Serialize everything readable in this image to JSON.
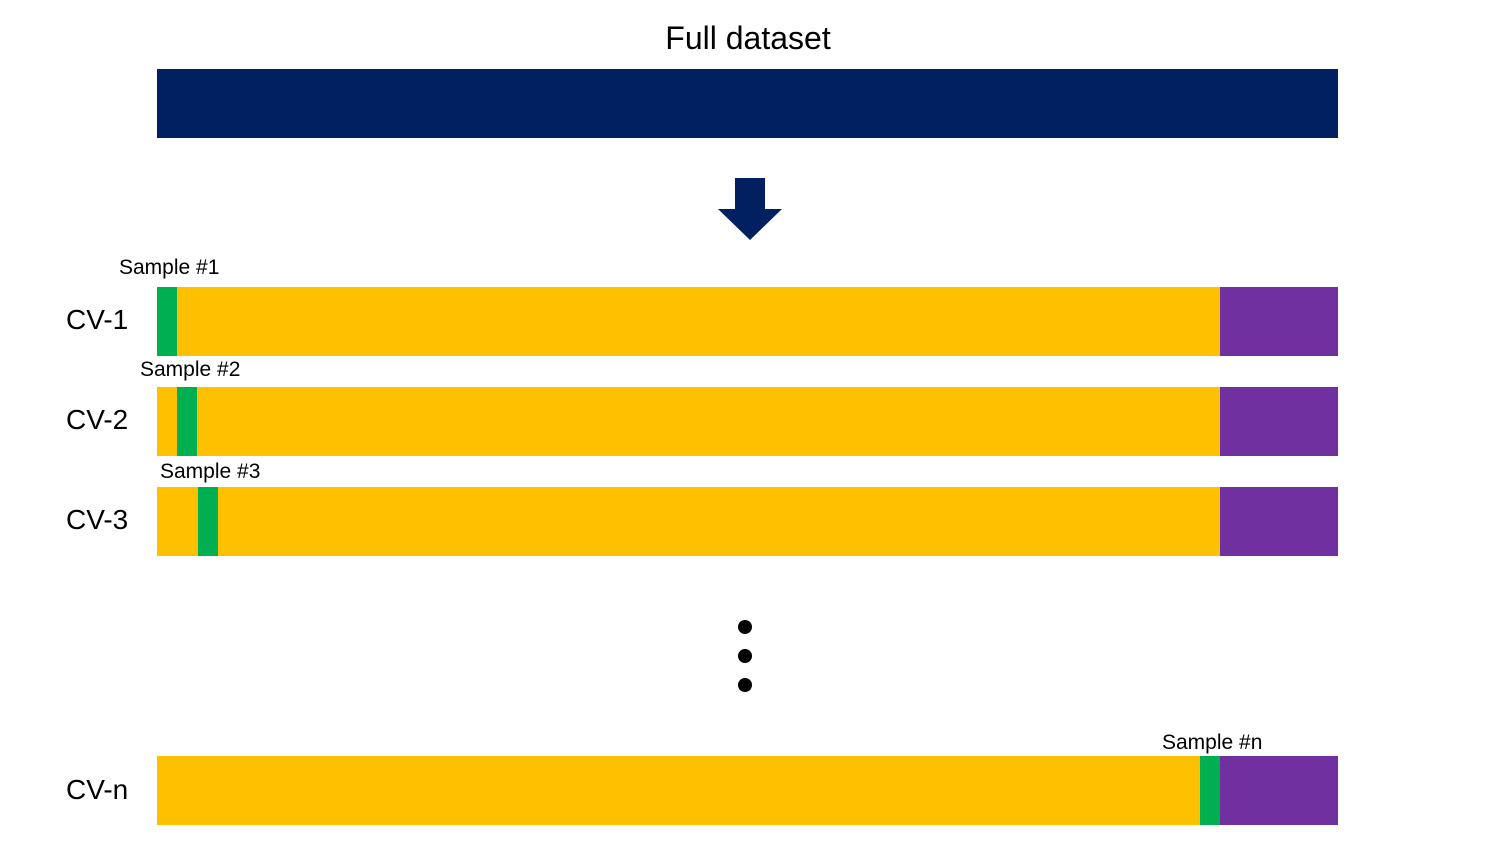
{
  "title": "Full dataset",
  "colors": {
    "full_dataset": "#002060",
    "training": "#ffc000",
    "validation_sample": "#00b050",
    "holdout": "#7030a0",
    "arrow": "#002060"
  },
  "icons": {
    "arrow": "down-arrow-icon",
    "ellipsis": "vertical-ellipsis-icon"
  },
  "rows": [
    {
      "label": "CV-1",
      "sample_label": "Sample #1"
    },
    {
      "label": "CV-2",
      "sample_label": "Sample #2"
    },
    {
      "label": "CV-3",
      "sample_label": "Sample #3"
    },
    {
      "label": "CV-n",
      "sample_label": "Sample #n"
    }
  ]
}
